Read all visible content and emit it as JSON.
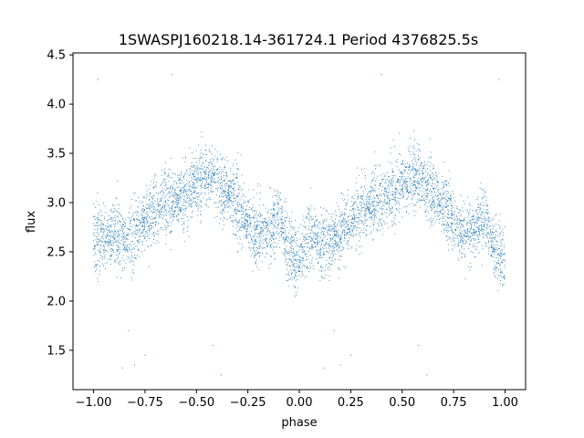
{
  "chart_data": {
    "type": "scatter",
    "title": "1SWASPJ160218.14-361724.1 Period 4376825.5s",
    "xlabel": "phase",
    "ylabel": "flux",
    "xlim": [
      -1.1,
      1.1
    ],
    "ylim": [
      1.1,
      4.52
    ],
    "x_ticks": [
      -1.0,
      -0.75,
      -0.5,
      -0.25,
      0.0,
      0.25,
      0.5,
      0.75,
      1.0
    ],
    "x_tick_labels": [
      "−1.00",
      "−0.75",
      "−0.50",
      "−0.25",
      "0.00",
      "0.25",
      "0.50",
      "0.75",
      "1.00"
    ],
    "y_ticks": [
      1.5,
      2.0,
      2.5,
      3.0,
      3.5,
      4.0,
      4.5
    ],
    "y_tick_labels": [
      "1.5",
      "2.0",
      "2.5",
      "3.0",
      "3.5",
      "4.0",
      "4.5"
    ],
    "grid": false,
    "marker_color": "#1f77b4",
    "series": [
      {
        "phase_profile": [
          {
            "phase": -1.0,
            "flux": 2.7
          },
          {
            "phase": -0.95,
            "flux": 2.6
          },
          {
            "phase": -0.9,
            "flux": 2.7
          },
          {
            "phase": -0.85,
            "flux": 2.6
          },
          {
            "phase": -0.8,
            "flux": 2.7
          },
          {
            "phase": -0.75,
            "flux": 2.8
          },
          {
            "phase": -0.7,
            "flux": 2.9
          },
          {
            "phase": -0.65,
            "flux": 3.0
          },
          {
            "phase": -0.6,
            "flux": 3.0
          },
          {
            "phase": -0.55,
            "flux": 3.1
          },
          {
            "phase": -0.5,
            "flux": 3.2
          },
          {
            "phase": -0.45,
            "flux": 3.3
          },
          {
            "phase": -0.4,
            "flux": 3.2
          },
          {
            "phase": -0.35,
            "flux": 3.1
          },
          {
            "phase": -0.3,
            "flux": 3.0
          },
          {
            "phase": -0.25,
            "flux": 2.8
          },
          {
            "phase": -0.2,
            "flux": 2.7
          },
          {
            "phase": -0.15,
            "flux": 2.7
          },
          {
            "phase": -0.1,
            "flux": 2.9
          },
          {
            "phase": -0.05,
            "flux": 2.5
          },
          {
            "phase": 0.0,
            "flux": 2.4
          },
          {
            "phase": 0.05,
            "flux": 2.7
          },
          {
            "phase": 0.1,
            "flux": 2.6
          },
          {
            "phase": 0.15,
            "flux": 2.6
          },
          {
            "phase": 0.2,
            "flux": 2.7
          },
          {
            "phase": 0.25,
            "flux": 2.8
          },
          {
            "phase": 0.3,
            "flux": 2.9
          },
          {
            "phase": 0.35,
            "flux": 3.0
          },
          {
            "phase": 0.4,
            "flux": 3.0
          },
          {
            "phase": 0.45,
            "flux": 3.1
          },
          {
            "phase": 0.5,
            "flux": 3.2
          },
          {
            "phase": 0.55,
            "flux": 3.3
          },
          {
            "phase": 0.6,
            "flux": 3.2
          },
          {
            "phase": 0.65,
            "flux": 3.1
          },
          {
            "phase": 0.7,
            "flux": 3.0
          },
          {
            "phase": 0.75,
            "flux": 2.8
          },
          {
            "phase": 0.8,
            "flux": 2.7
          },
          {
            "phase": 0.85,
            "flux": 2.7
          },
          {
            "phase": 0.9,
            "flux": 2.9
          },
          {
            "phase": 0.95,
            "flux": 2.5
          },
          {
            "phase": 1.0,
            "flux": 2.4
          }
        ],
        "scatter_half_width": 0.25,
        "outliers": [
          {
            "phase": -0.98,
            "flux": 4.25
          },
          {
            "phase": -0.86,
            "flux": 1.32
          },
          {
            "phase": -0.8,
            "flux": 1.35
          },
          {
            "phase": -0.83,
            "flux": 1.7
          },
          {
            "phase": -0.75,
            "flux": 1.45
          },
          {
            "phase": -0.38,
            "flux": 1.25
          },
          {
            "phase": 0.12,
            "flux": 1.32
          },
          {
            "phase": 0.2,
            "flux": 1.35
          },
          {
            "phase": 0.17,
            "flux": 1.7
          },
          {
            "phase": 0.25,
            "flux": 1.45
          },
          {
            "phase": 0.62,
            "flux": 1.25
          },
          {
            "phase": 0.97,
            "flux": 4.25
          },
          {
            "phase": -0.62,
            "flux": 4.3
          },
          {
            "phase": 0.4,
            "flux": 4.3
          },
          {
            "phase": -0.42,
            "flux": 1.55
          },
          {
            "phase": 0.58,
            "flux": 1.55
          }
        ]
      }
    ]
  }
}
